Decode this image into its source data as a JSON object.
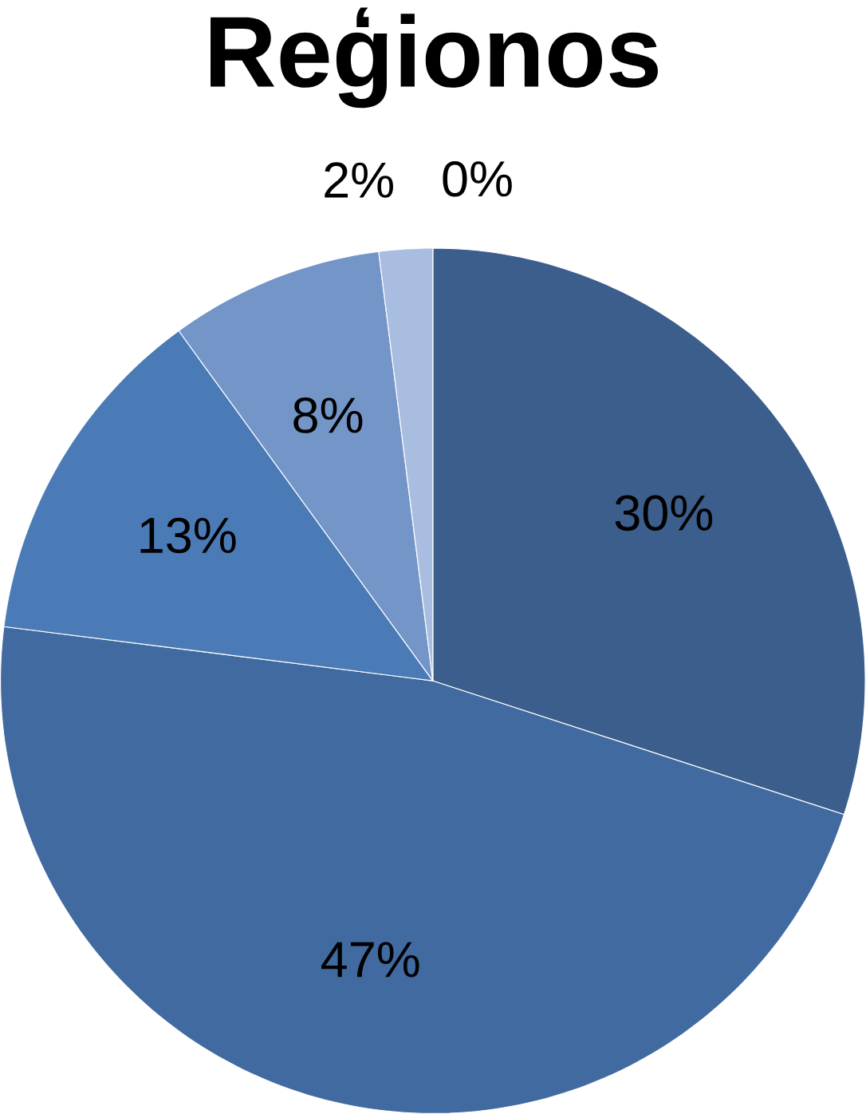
{
  "chart_data": {
    "type": "pie",
    "title": "Reģionos",
    "categories": [
      null,
      null,
      null,
      null,
      null,
      null
    ],
    "values": [
      30,
      47,
      13,
      8,
      2,
      0
    ],
    "colors": [
      "#3b5e8c",
      "#416aa0",
      "#4a7bb7",
      "#7495c8",
      "#a9bde0",
      "#c7d3ea"
    ],
    "value_labels": [
      "30%",
      "47%",
      "13%",
      "8%",
      "2%",
      "0%"
    ]
  }
}
